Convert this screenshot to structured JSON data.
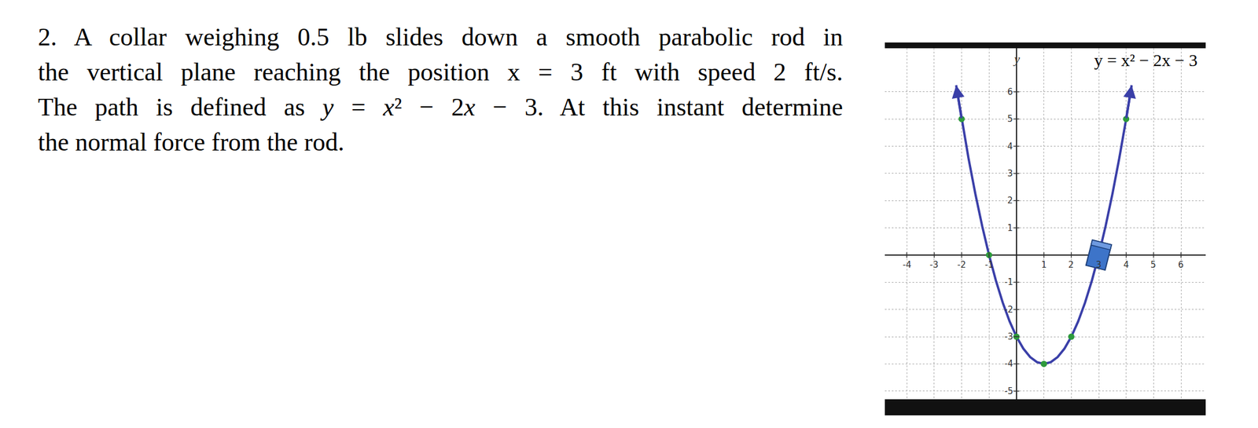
{
  "problem": {
    "text_lines": [
      [
        "2. A collar weighing 0.5 lb slides down a smooth parabolic rod in"
      ],
      [
        "the vertical plane reaching the position x = 3 ft with speed 2 ft/s."
      ],
      [
        "The path is defined as ",
        {
          "math": "y = x² − 2x − 3"
        },
        ". At this instant determine"
      ],
      [
        "the normal force from the rod."
      ]
    ]
  },
  "chart_data": {
    "type": "line",
    "equation_label": "y = x² − 2x − 3",
    "ylabel": "y",
    "x": [
      -2.2,
      -2,
      -1.75,
      -1.5,
      -1.25,
      -1,
      -0.75,
      -0.5,
      -0.25,
      0,
      0.25,
      0.5,
      0.75,
      1,
      1.25,
      1.5,
      1.75,
      2,
      2.25,
      2.5,
      2.75,
      3,
      3.25,
      3.5,
      3.75,
      4,
      4.2
    ],
    "values": [
      6.24,
      5,
      3.5625,
      2.25,
      1.0625,
      0,
      -0.9375,
      -1.75,
      -2.4375,
      -3,
      -3.4375,
      -3.75,
      -3.9375,
      -4,
      -3.9375,
      -3.75,
      -3.4375,
      -3,
      -2.4375,
      -1.75,
      -0.9375,
      0,
      1.0625,
      2.25,
      3.5625,
      5,
      6.24
    ],
    "color": "#3a3fa8",
    "points": {
      "x": [
        -2,
        -1,
        0,
        1,
        2,
        4
      ],
      "y": [
        5,
        0,
        -3,
        -4,
        -3,
        5
      ],
      "color": "#2e9a3c"
    },
    "collar": {
      "x": 3,
      "y": 0,
      "color": "#3d74c9"
    },
    "xlim": [
      -4.8,
      6.9
    ],
    "ylim": [
      -5.3,
      7.6
    ],
    "xticks": [
      -4,
      -3,
      -2,
      -1,
      1,
      2,
      3,
      4,
      5,
      6
    ],
    "yticks": [
      -5,
      -4,
      -3,
      -2,
      -1,
      1,
      2,
      3,
      4,
      5,
      6
    ],
    "grid": true
  }
}
